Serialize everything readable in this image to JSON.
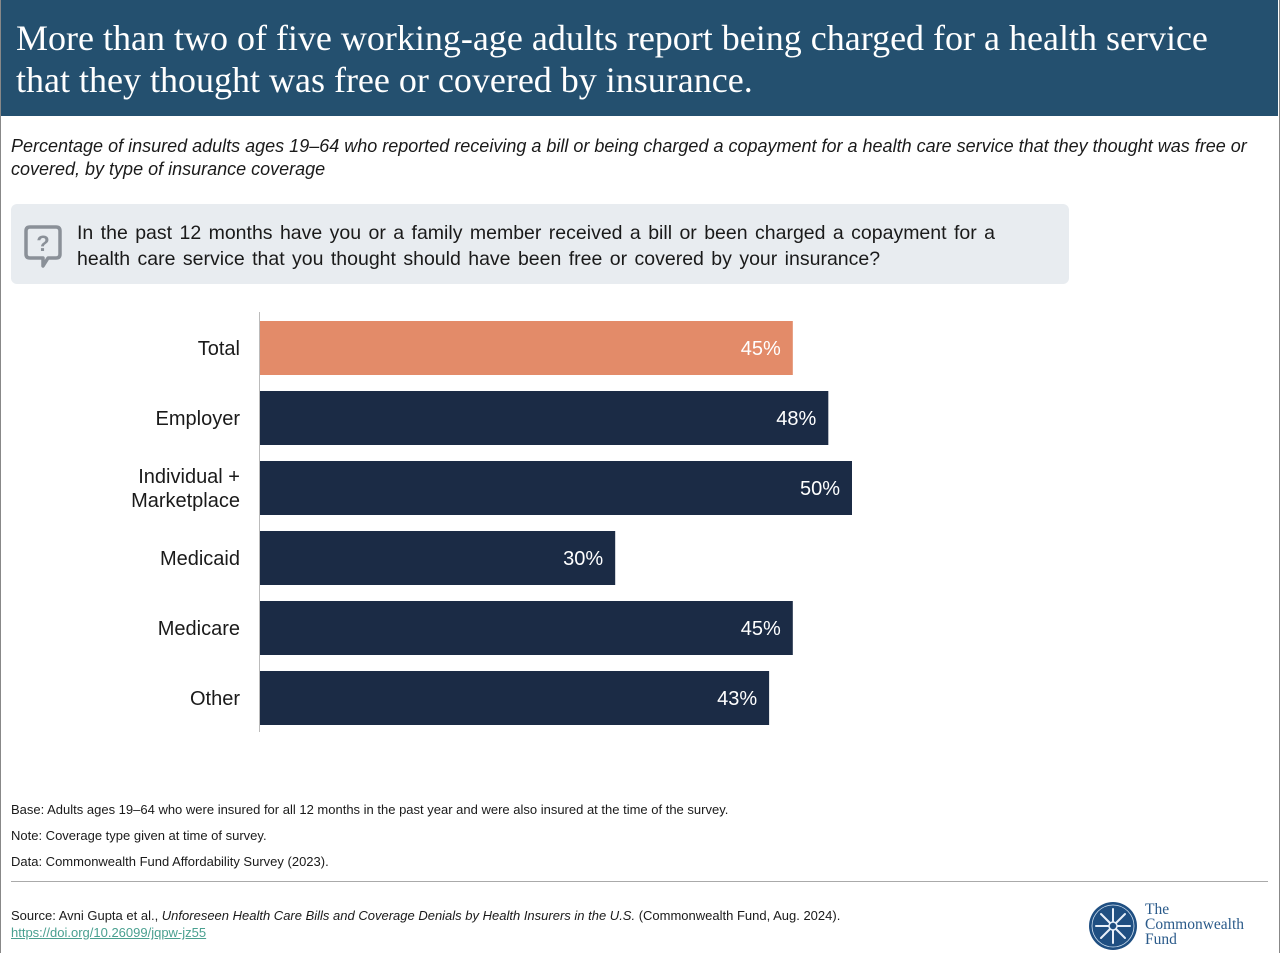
{
  "header": {
    "title": "More than two of five working-age adults report being charged for a health service that they thought was free or covered by insurance."
  },
  "subtitle": "Percentage of insured adults ages 19–64 who reported receiving a bill or being charged a copayment for a health care service that they thought was free or covered, by type of insurance coverage",
  "question": {
    "icon": "question-speech-bubble-icon",
    "text": "In the past 12 months have you or a family member received a bill or been charged a copayment for a health care service that you thought should have been free or covered by your insurance?"
  },
  "chart_data": {
    "type": "bar",
    "orientation": "horizontal",
    "categories": [
      "Total",
      "Employer",
      "Individual + Marketplace",
      "Medicaid",
      "Medicare",
      "Other"
    ],
    "values": [
      45,
      48,
      50,
      30,
      45,
      43
    ],
    "data_labels": [
      "45%",
      "48%",
      "50%",
      "30%",
      "45%",
      "43%"
    ],
    "colors": [
      "#e38b69",
      "#1b2b45",
      "#1b2b45",
      "#1b2b45",
      "#1b2b45",
      "#1b2b45"
    ],
    "xlim": [
      0,
      100
    ],
    "grid": false
  },
  "notes": {
    "base": "Base: Adults ages 19–64 who were insured for all 12 months in the past year and were also insured at the time of the survey.",
    "note": "Note: Coverage type given at time of survey.",
    "data": "Data: Commonwealth Fund Affordability Survey (2023)."
  },
  "source": {
    "prefix": "Source: Avni Gupta et al., ",
    "title": "Unforeseen Health Care Bills and Coverage Denials by Health Insurers in the U.S.",
    "suffix": " (Commonwealth Fund, Aug. 2024).",
    "link": "https://doi.org/10.26099/jqpw-jz55"
  },
  "logo": {
    "line1": "The",
    "line2": "Commonwealth",
    "line3": "Fund"
  }
}
